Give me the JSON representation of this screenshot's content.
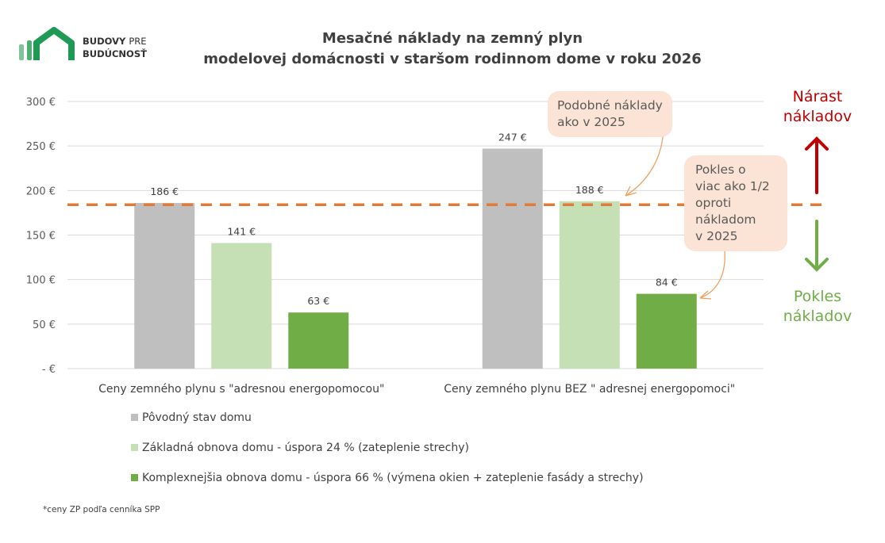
{
  "logo": {
    "line1_bold": "BUDOVY",
    "line1_light": "PRE",
    "line2": "BUDÚCNOSŤ"
  },
  "chart_data": {
    "type": "bar",
    "title": "Mesačné náklady na zemný plyn modelovej domácnosti v staršom rodinnom dome v roku 2026",
    "title_lines": [
      "Mesačné náklady na zemný plyn",
      "modelovej domácnosti v staršom rodinnom dome v roku 2026"
    ],
    "categories": [
      "Ceny zemného plynu s \"adresnou energopomocou\"",
      "Ceny zemného plynu BEZ \" adresnej energopomoci\""
    ],
    "series": [
      {
        "name": "Pôvodný stav domu",
        "values": [
          186,
          247
        ],
        "labels": [
          "186 €",
          "247 €"
        ],
        "color": "#bfbfbf"
      },
      {
        "name": "Základná obnova domu - úspora 24 % (zateplenie strechy)",
        "values": [
          141,
          188
        ],
        "labels": [
          "141 €",
          "188 €"
        ],
        "color": "#c5e0b4"
      },
      {
        "name": "Komplexnejšia obnova domu - úspora 66 % (výmena okien + zateplenie fasády a strechy)",
        "values": [
          63,
          84
        ],
        "labels": [
          "63 €",
          "84 €"
        ],
        "color": "#70ad47"
      }
    ],
    "yticks": [
      0,
      50,
      100,
      150,
      200,
      250,
      300
    ],
    "ytick_labels": [
      "-  €",
      "50 €",
      "100 €",
      "150 €",
      "200 €",
      "250 €",
      "300 €"
    ],
    "ylim": [
      0,
      300
    ],
    "grid": true,
    "legend_placement": "bottom",
    "reference_line": {
      "value": 184,
      "color": "#e07b39",
      "style": "dashed"
    },
    "annotations": [
      {
        "text_lines": [
          "Podobné náklady",
          "ako v 2025"
        ]
      },
      {
        "text_lines": [
          "Pokles o",
          "viac ako 1/2",
          "oproti",
          "nákladom",
          "v 2025"
        ]
      }
    ]
  },
  "side_labels": {
    "increase": [
      "Nárast",
      "nákladov"
    ],
    "increase_color": "#c00000",
    "decrease": [
      "Pokles",
      "nákladov"
    ],
    "decrease_color": "#70ad47"
  },
  "footnote": "*ceny ZP podľa cenníka SPP"
}
